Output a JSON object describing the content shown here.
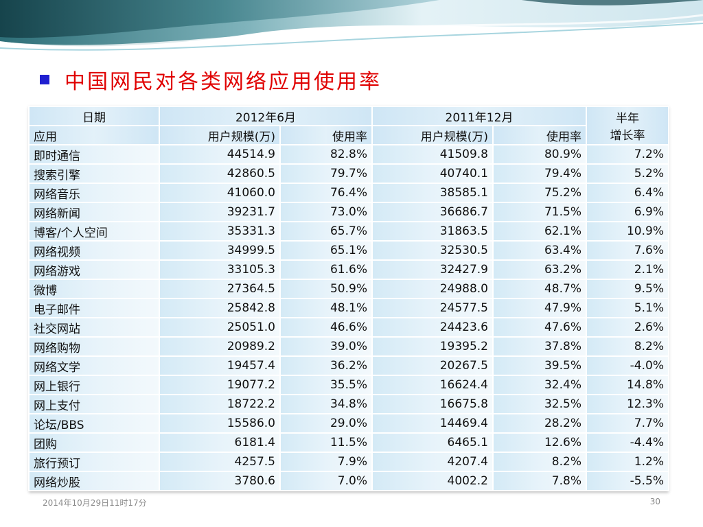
{
  "title": "中国网民对各类网络应用使用率",
  "header": {
    "date_label": "日期",
    "period1": "2012年6月",
    "period2": "2011年12月",
    "growth_line1": "半年",
    "growth_line2": "增长率",
    "app_label": "应用",
    "users_label": "用户规模(万)",
    "rate_label": "使用率"
  },
  "rows": [
    {
      "app": "即时通信",
      "users_2012": "44514.9",
      "rate_2012": "82.8%",
      "users_2011": "41509.8",
      "rate_2011": "80.9%",
      "growth": "7.2%"
    },
    {
      "app": "搜索引擎",
      "users_2012": "42860.5",
      "rate_2012": "79.7%",
      "users_2011": "40740.1",
      "rate_2011": "79.4%",
      "growth": "5.2%"
    },
    {
      "app": "网络音乐",
      "users_2012": "41060.0",
      "rate_2012": "76.4%",
      "users_2011": "38585.1",
      "rate_2011": "75.2%",
      "growth": "6.4%"
    },
    {
      "app": "网络新闻",
      "users_2012": "39231.7",
      "rate_2012": "73.0%",
      "users_2011": "36686.7",
      "rate_2011": "71.5%",
      "growth": "6.9%"
    },
    {
      "app": "博客/个人空间",
      "users_2012": "35331.3",
      "rate_2012": "65.7%",
      "users_2011": "31863.5",
      "rate_2011": "62.1%",
      "growth": "10.9%"
    },
    {
      "app": "网络视频",
      "users_2012": "34999.5",
      "rate_2012": "65.1%",
      "users_2011": "32530.5",
      "rate_2011": "63.4%",
      "growth": "7.6%"
    },
    {
      "app": "网络游戏",
      "users_2012": "33105.3",
      "rate_2012": "61.6%",
      "users_2011": "32427.9",
      "rate_2011": "63.2%",
      "growth": "2.1%"
    },
    {
      "app": "微博",
      "users_2012": "27364.5",
      "rate_2012": "50.9%",
      "users_2011": "24988.0",
      "rate_2011": "48.7%",
      "growth": "9.5%"
    },
    {
      "app": "电子邮件",
      "users_2012": "25842.8",
      "rate_2012": "48.1%",
      "users_2011": "24577.5",
      "rate_2011": "47.9%",
      "growth": "5.1%"
    },
    {
      "app": "社交网站",
      "users_2012": "25051.0",
      "rate_2012": "46.6%",
      "users_2011": "24423.6",
      "rate_2011": "47.6%",
      "growth": "2.6%"
    },
    {
      "app": "网络购物",
      "users_2012": "20989.2",
      "rate_2012": "39.0%",
      "users_2011": "19395.2",
      "rate_2011": "37.8%",
      "growth": "8.2%"
    },
    {
      "app": "网络文学",
      "users_2012": "19457.4",
      "rate_2012": "36.2%",
      "users_2011": "20267.5",
      "rate_2011": "39.5%",
      "growth": "-4.0%"
    },
    {
      "app": "网上银行",
      "users_2012": "19077.2",
      "rate_2012": "35.5%",
      "users_2011": "16624.4",
      "rate_2011": "32.4%",
      "growth": "14.8%"
    },
    {
      "app": "网上支付",
      "users_2012": "18722.2",
      "rate_2012": "34.8%",
      "users_2011": "16675.8",
      "rate_2011": "32.5%",
      "growth": "12.3%"
    },
    {
      "app": "论坛/BBS",
      "users_2012": "15586.0",
      "rate_2012": "29.0%",
      "users_2011": "14469.4",
      "rate_2011": "28.2%",
      "growth": "7.7%"
    },
    {
      "app": "团购",
      "users_2012": "6181.4",
      "rate_2012": "11.5%",
      "users_2011": "6465.1",
      "rate_2011": "12.6%",
      "growth": "-4.4%"
    },
    {
      "app": "旅行预订",
      "users_2012": "4257.5",
      "rate_2012": "7.9%",
      "users_2011": "4207.4",
      "rate_2011": "8.2%",
      "growth": "1.2%"
    },
    {
      "app": "网络炒股",
      "users_2012": "3780.6",
      "rate_2012": "7.0%",
      "users_2011": "4002.2",
      "rate_2011": "7.8%",
      "growth": "-5.5%"
    }
  ],
  "footer": {
    "date": "2014年10月29日11时17分",
    "page": "30"
  },
  "colors": {
    "title": "#e00000",
    "bullet": "#1f1fd0",
    "cell_bg": "#dcedf7",
    "banner_dark": "#1e4d55",
    "banner_light": "#d8ecf3"
  }
}
